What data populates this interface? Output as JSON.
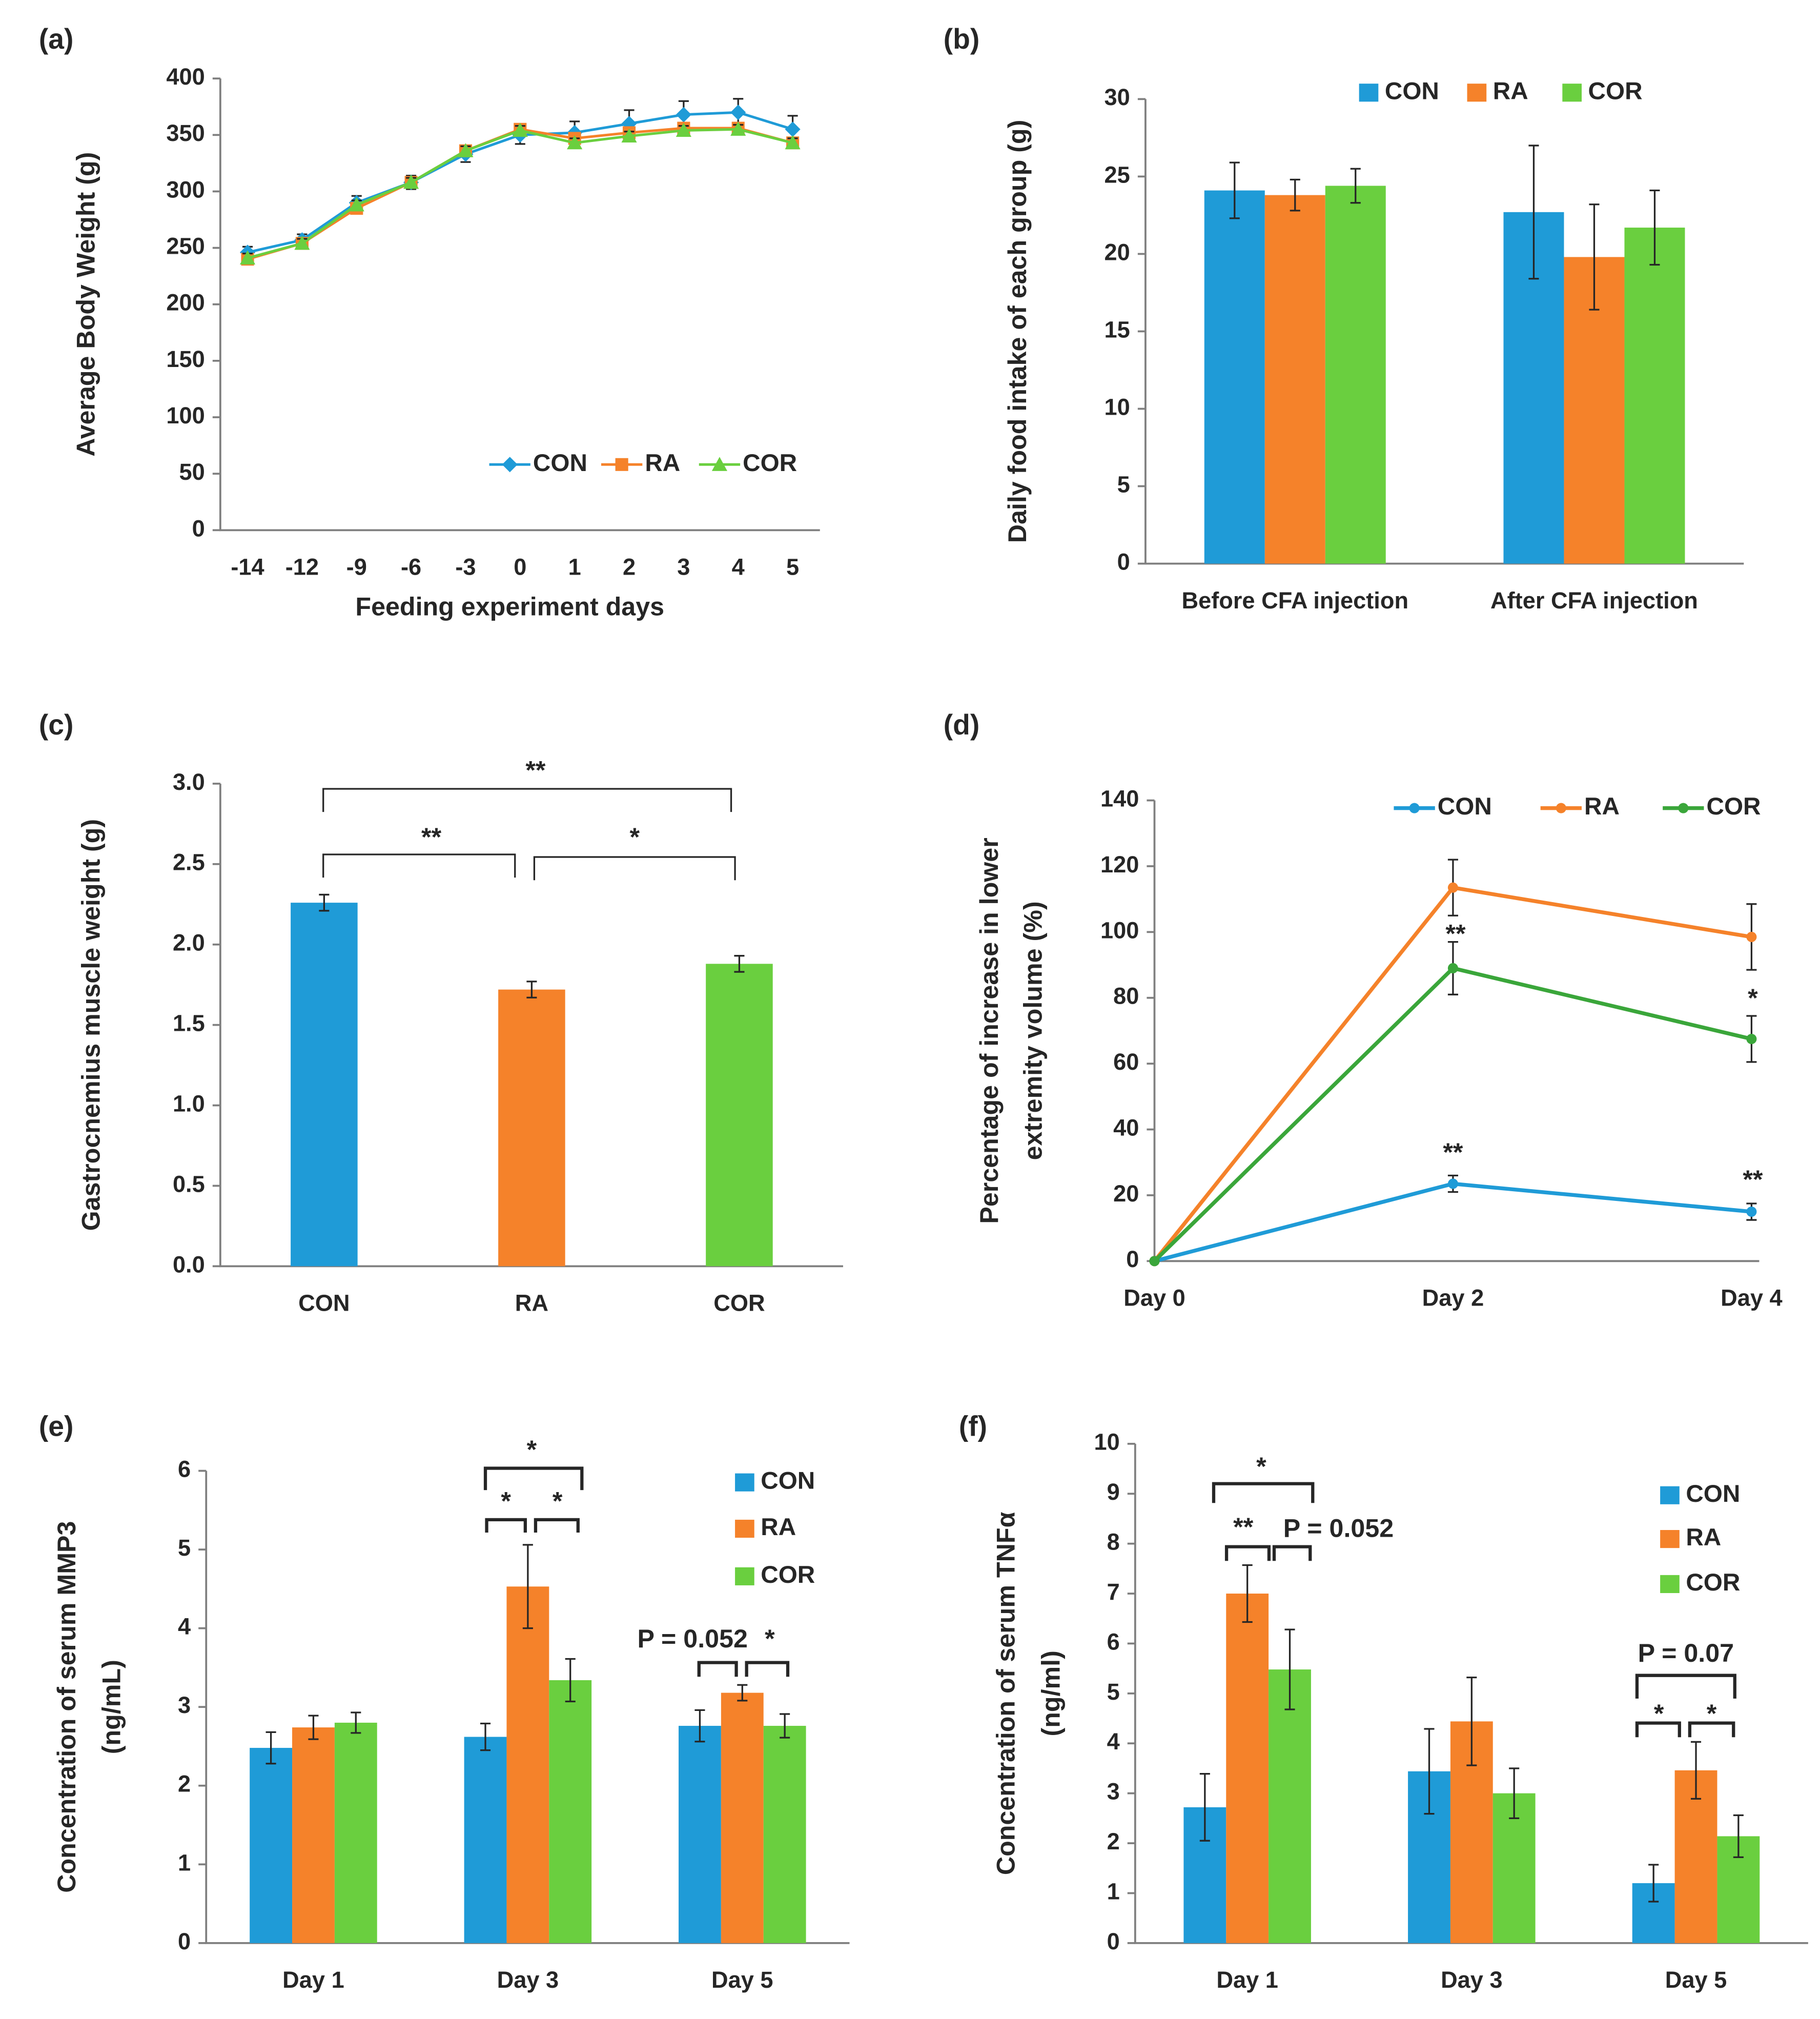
{
  "chart_data": [
    {
      "type": "line",
      "label": "(a)",
      "xlabel": "Feeding experiment days",
      "ylabel": "Average Body Weight (g)",
      "categories": [
        "-14",
        "-12",
        "-9",
        "-6",
        "-3",
        "0",
        "1",
        "2",
        "3",
        "4",
        "5"
      ],
      "ylim": [
        0,
        400
      ],
      "yticks": [
        0,
        50,
        100,
        150,
        200,
        250,
        300,
        350,
        400
      ],
      "legend": "lower right",
      "series": [
        {
          "name": "CON",
          "color": "#1f9bd7",
          "values": [
            246,
            257,
            290,
            308,
            333,
            350,
            352,
            360,
            368,
            370,
            355
          ],
          "errors": [
            5,
            5,
            6,
            6,
            7,
            8,
            10,
            12,
            12,
            12,
            12
          ]
        },
        {
          "name": "RA",
          "color": "#f5822a",
          "values": [
            240,
            254,
            285,
            308,
            336,
            355,
            347,
            352,
            356,
            356,
            343
          ],
          "errors": [
            4,
            4,
            4,
            4,
            4,
            4,
            4,
            4,
            4,
            4,
            4
          ]
        },
        {
          "name": "COR",
          "color": "#6acf3f",
          "values": [
            241,
            254,
            288,
            308,
            336,
            354,
            343,
            349,
            354,
            355,
            343
          ],
          "errors": [
            4,
            4,
            4,
            4,
            4,
            4,
            4,
            4,
            4,
            4,
            4
          ]
        }
      ]
    },
    {
      "type": "bar",
      "label": "(b)",
      "ylabel": "Daily food intake of each group (g)",
      "categories": [
        "Before CFA injection",
        "After CFA injection"
      ],
      "ylim": [
        0,
        30
      ],
      "yticks": [
        0,
        5,
        10,
        15,
        20,
        25,
        30
      ],
      "legend": "top",
      "series": [
        {
          "name": "CON",
          "color": "#1f9bd7",
          "values": [
            24.1,
            22.7
          ],
          "errors": [
            1.8,
            4.3
          ]
        },
        {
          "name": "RA",
          "color": "#f5822a",
          "values": [
            23.8,
            19.8
          ],
          "errors": [
            1.0,
            3.4
          ]
        },
        {
          "name": "COR",
          "color": "#6acf3f",
          "values": [
            24.4,
            21.7
          ],
          "errors": [
            1.1,
            2.4
          ]
        }
      ]
    },
    {
      "type": "bar",
      "label": "(c)",
      "ylabel": "Gastrocnemius muscle weight (g)",
      "categories": [
        "CON",
        "RA",
        "COR"
      ],
      "values": [
        2.26,
        1.72,
        1.88
      ],
      "errors": [
        0.05,
        0.05,
        0.05
      ],
      "colors": [
        "#1f9bd7",
        "#f5822a",
        "#6acf3f"
      ],
      "ylim": [
        0,
        3
      ],
      "yticks": [
        {
          "value": 0,
          "label": "0.0"
        },
        {
          "value": 0.5,
          "label": "0.5"
        },
        {
          "value": 1,
          "label": "1.0"
        },
        {
          "value": 1.5,
          "label": "1.5"
        },
        {
          "value": 2,
          "label": "2.0"
        },
        {
          "value": 2.5,
          "label": "2.5"
        },
        {
          "value": 3,
          "label": "3.0"
        }
      ],
      "annotations": [
        "**",
        "**",
        "*"
      ]
    },
    {
      "type": "line",
      "label": "(d)",
      "ylabel": [
        "Percentage of increase in lower",
        "extremity volume (%)"
      ],
      "categories": [
        "Day 0",
        "Day 2",
        "Day 4"
      ],
      "ylim": [
        0,
        140
      ],
      "yticks": [
        0,
        20,
        40,
        60,
        80,
        100,
        120,
        140
      ],
      "legend": "top",
      "series": [
        {
          "name": "CON",
          "color": "#1f9bd7",
          "values": [
            0,
            23.5,
            15
          ],
          "errors": [
            0,
            2.5,
            2.5
          ]
        },
        {
          "name": "RA",
          "color": "#f5822a",
          "values": [
            0,
            113.5,
            98.5
          ],
          "errors": [
            0,
            8.5,
            10
          ]
        },
        {
          "name": "COR",
          "color": "#3aa63a",
          "values": [
            0,
            89,
            67.5
          ],
          "errors": [
            0,
            8,
            7
          ]
        }
      ],
      "annotations": [
        "**",
        "*",
        "**",
        "**"
      ]
    },
    {
      "type": "bar",
      "label": "(e)",
      "ylabel": [
        "Concentration of serum MMP3",
        "(ng/mL)"
      ],
      "categories": [
        "Day 1",
        "Day 3",
        "Day 5"
      ],
      "ylim": [
        0,
        6
      ],
      "yticks": [
        0,
        1,
        2,
        3,
        4,
        5,
        6
      ],
      "legend": "upper right",
      "series": [
        {
          "name": "CON",
          "color": "#1f9bd7",
          "values": [
            2.48,
            2.62,
            2.76
          ],
          "errors": [
            0.2,
            0.17,
            0.2
          ]
        },
        {
          "name": "RA",
          "color": "#f5822a",
          "values": [
            2.74,
            4.53,
            3.18
          ],
          "errors": [
            0.15,
            0.53,
            0.1
          ]
        },
        {
          "name": "COR",
          "color": "#6acf3f",
          "values": [
            2.8,
            3.34,
            2.76
          ],
          "errors": [
            0.13,
            0.27,
            0.15
          ]
        }
      ],
      "annotations": [
        "*",
        "*",
        "*",
        "P = 0.052",
        "*"
      ]
    },
    {
      "type": "bar",
      "label": "(f)",
      "ylabel": [
        "Concentration of serum TNFα",
        "(ng/ml)"
      ],
      "categories": [
        "Day 1",
        "Day 3",
        "Day 5"
      ],
      "ylim": [
        0,
        10
      ],
      "yticks": [
        0,
        1,
        2,
        3,
        4,
        5,
        6,
        7,
        8,
        9,
        10
      ],
      "legend": "upper right",
      "series": [
        {
          "name": "CON",
          "color": "#1f9bd7",
          "values": [
            2.72,
            3.44,
            1.2
          ],
          "errors": [
            0.67,
            0.85,
            0.37
          ]
        },
        {
          "name": "RA",
          "color": "#f5822a",
          "values": [
            7.0,
            4.44,
            3.46
          ],
          "errors": [
            0.57,
            0.88,
            0.57
          ]
        },
        {
          "name": "COR",
          "color": "#6acf3f",
          "values": [
            5.48,
            3.0,
            2.14
          ],
          "errors": [
            0.8,
            0.5,
            0.42
          ]
        }
      ],
      "annotations": [
        "*",
        "**",
        "P = 0.052",
        "P = 0.07",
        "*",
        "*"
      ]
    }
  ]
}
